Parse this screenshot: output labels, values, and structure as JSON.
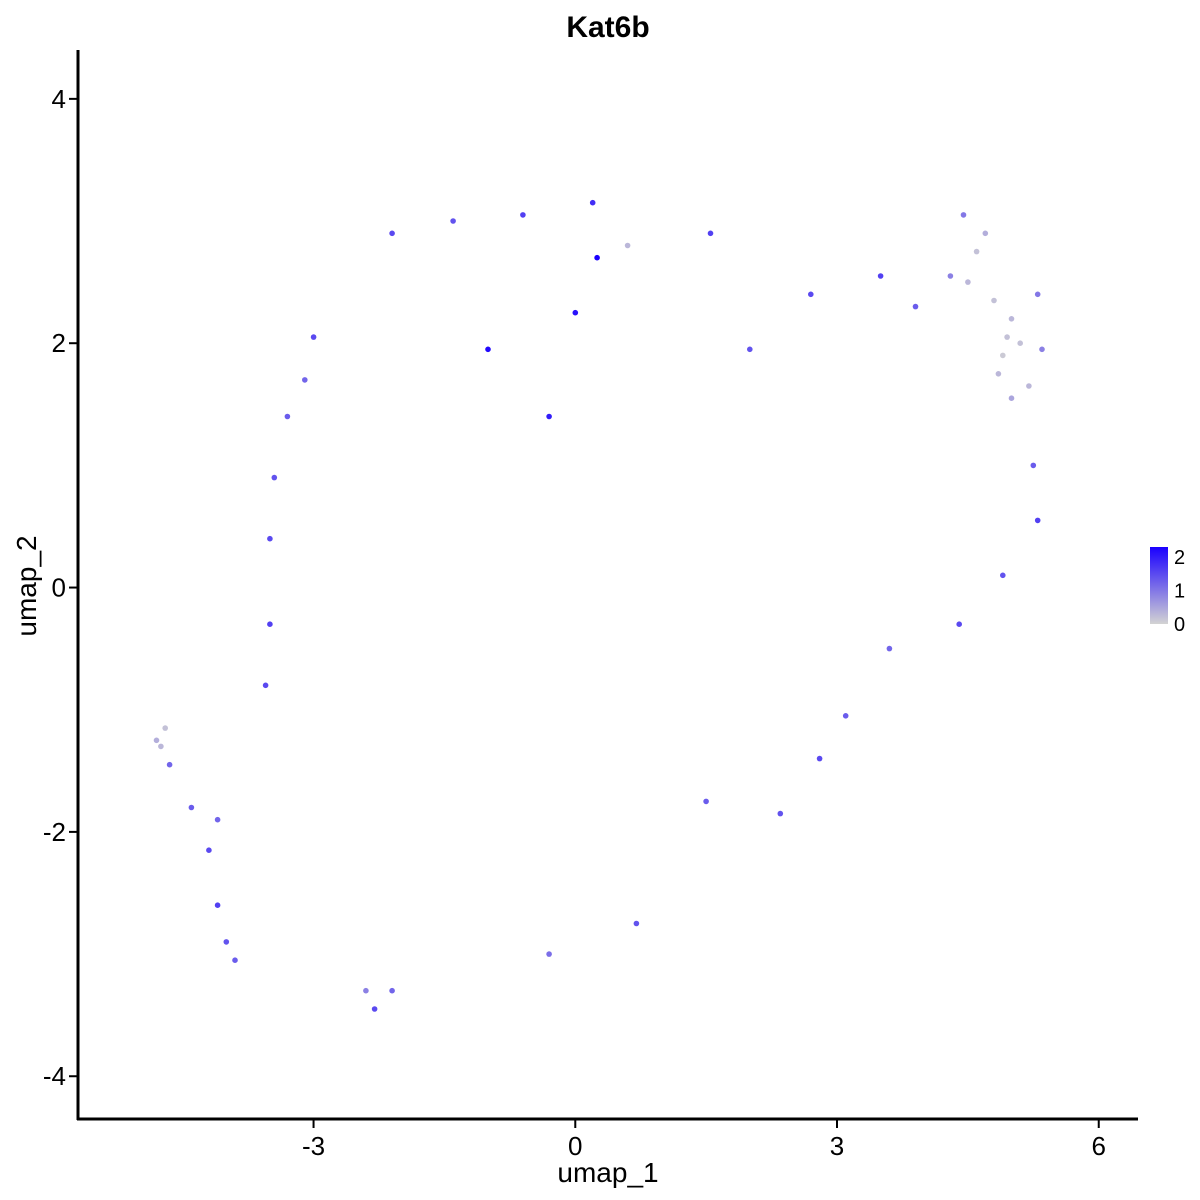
{
  "chart_data": {
    "type": "scatter",
    "title": "Kat6b",
    "xlabel": "umap_1",
    "ylabel": "umap_2",
    "xlim": [
      -5.7,
      6.45
    ],
    "ylim": [
      -4.35,
      4.4
    ],
    "x_ticks": [
      -3,
      0,
      3,
      6
    ],
    "y_ticks": [
      -4,
      -2,
      0,
      2,
      4
    ],
    "x_tick_labels": [
      "-3",
      "0",
      "3",
      "6"
    ],
    "y_tick_labels": [
      "-4",
      "-2",
      "0",
      "2",
      "4"
    ],
    "grid": false,
    "legend": {
      "placement": "right",
      "type": "continuous",
      "range": [
        0,
        2.3
      ],
      "ticks": [
        "0",
        "1",
        "2"
      ],
      "low_color": "#d3d3d3",
      "high_color": "#1a00ff"
    },
    "point_size": "small",
    "points": [
      [
        -4.8,
        -1.25,
        0.4
      ],
      [
        -4.75,
        -1.3,
        0.3
      ],
      [
        -4.7,
        -1.15,
        0.2
      ],
      [
        -4.65,
        -1.45,
        1.2
      ],
      [
        -4.4,
        -1.8,
        1.3
      ],
      [
        -4.2,
        -2.15,
        1.5
      ],
      [
        -4.1,
        -2.6,
        1.6
      ],
      [
        -4.0,
        -2.9,
        1.4
      ],
      [
        -3.9,
        -3.05,
        1.3
      ],
      [
        -4.1,
        -1.9,
        1.2
      ],
      [
        0.2,
        3.15,
        1.8
      ],
      [
        0.25,
        2.7,
        2.3
      ],
      [
        -1.0,
        1.95,
        2.2
      ],
      [
        0.0,
        2.25,
        2.1
      ],
      [
        -0.3,
        1.4,
        2.0
      ],
      [
        4.45,
        3.05,
        1.0
      ],
      [
        4.5,
        2.5,
        0.3
      ],
      [
        4.8,
        2.35,
        0.2
      ],
      [
        5.0,
        2.2,
        0.3
      ],
      [
        4.9,
        1.9,
        0.1
      ],
      [
        5.1,
        2.0,
        0.2
      ],
      [
        5.3,
        2.4,
        1.0
      ],
      [
        5.35,
        1.95,
        0.9
      ],
      [
        4.6,
        2.75,
        0.2
      ],
      [
        4.85,
        1.75,
        0.3
      ],
      [
        4.3,
        2.55,
        0.9
      ],
      [
        5.0,
        1.55,
        0.5
      ],
      [
        4.7,
        2.9,
        0.4
      ],
      [
        5.2,
        1.65,
        0.3
      ],
      [
        4.95,
        2.05,
        0.2
      ],
      [
        -2.3,
        -3.45,
        1.5
      ],
      [
        -2.1,
        -3.3,
        1.2
      ],
      [
        -2.4,
        -3.3,
        0.9
      ],
      [
        -0.3,
        -3.0,
        1.1
      ],
      [
        0.7,
        -2.75,
        1.4
      ],
      [
        1.5,
        -1.75,
        1.3
      ],
      [
        2.35,
        -1.85,
        1.4
      ],
      [
        2.8,
        -1.4,
        1.5
      ],
      [
        3.1,
        -1.05,
        1.3
      ],
      [
        3.6,
        -0.5,
        1.2
      ],
      [
        4.4,
        -0.3,
        1.5
      ],
      [
        4.9,
        0.1,
        1.4
      ],
      [
        5.3,
        0.55,
        1.6
      ],
      [
        5.25,
        1.0,
        1.3
      ],
      [
        2.0,
        1.95,
        1.4
      ],
      [
        2.7,
        2.4,
        1.5
      ],
      [
        3.5,
        2.55,
        1.6
      ],
      [
        3.9,
        2.3,
        1.3
      ],
      [
        1.55,
        2.9,
        1.6
      ],
      [
        0.6,
        2.8,
        0.3
      ],
      [
        -2.1,
        2.9,
        1.5
      ],
      [
        -1.4,
        3.0,
        1.4
      ],
      [
        -0.6,
        3.05,
        1.6
      ],
      [
        -3.0,
        2.05,
        1.5
      ],
      [
        -3.1,
        1.7,
        1.2
      ],
      [
        -3.3,
        1.4,
        1.3
      ],
      [
        -3.45,
        0.9,
        1.4
      ],
      [
        -3.5,
        0.4,
        1.5
      ],
      [
        -3.5,
        -0.3,
        1.6
      ],
      [
        -3.55,
        -0.8,
        1.5
      ]
    ]
  }
}
